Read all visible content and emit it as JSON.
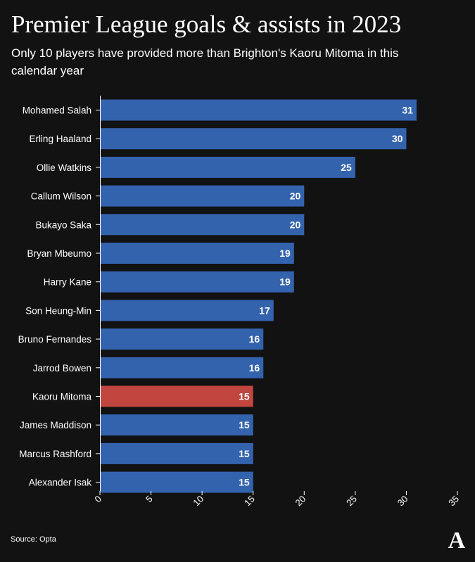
{
  "title": "Premier League goals & assists in 2023",
  "subtitle": "Only 10 players have provided more than Brighton's Kaoru Mitoma in this calendar year",
  "source": "Source: Opta",
  "logo_letter": "A",
  "colors": {
    "background": "#121212",
    "bar": "#3463ae",
    "highlight": "#c0463f",
    "text": "#ffffff",
    "axis": "#ffffff"
  },
  "chart_data": {
    "type": "bar",
    "orientation": "horizontal",
    "title": "Premier League goals & assists in 2023",
    "subtitle": "Only 10 players have provided more than Brighton's Kaoru Mitoma in this calendar year",
    "xlabel": "",
    "ylabel": "",
    "xlim": [
      0,
      35
    ],
    "xticks": [
      0,
      5,
      10,
      15,
      20,
      25,
      30,
      35
    ],
    "grid": false,
    "categories": [
      "Mohamed Salah",
      "Erling Haaland",
      "Ollie Watkins",
      "Callum Wilson",
      "Bukayo Saka",
      "Bryan Mbeumo",
      "Harry Kane",
      "Son Heung-Min",
      "Bruno Fernandes",
      "Jarrod Bowen",
      "Kaoru Mitoma",
      "James Maddison",
      "Marcus Rashford",
      "Alexander Isak"
    ],
    "values": [
      31,
      30,
      25,
      20,
      20,
      19,
      19,
      17,
      16,
      16,
      15,
      15,
      15,
      15
    ],
    "highlight": "Kaoru Mitoma"
  }
}
